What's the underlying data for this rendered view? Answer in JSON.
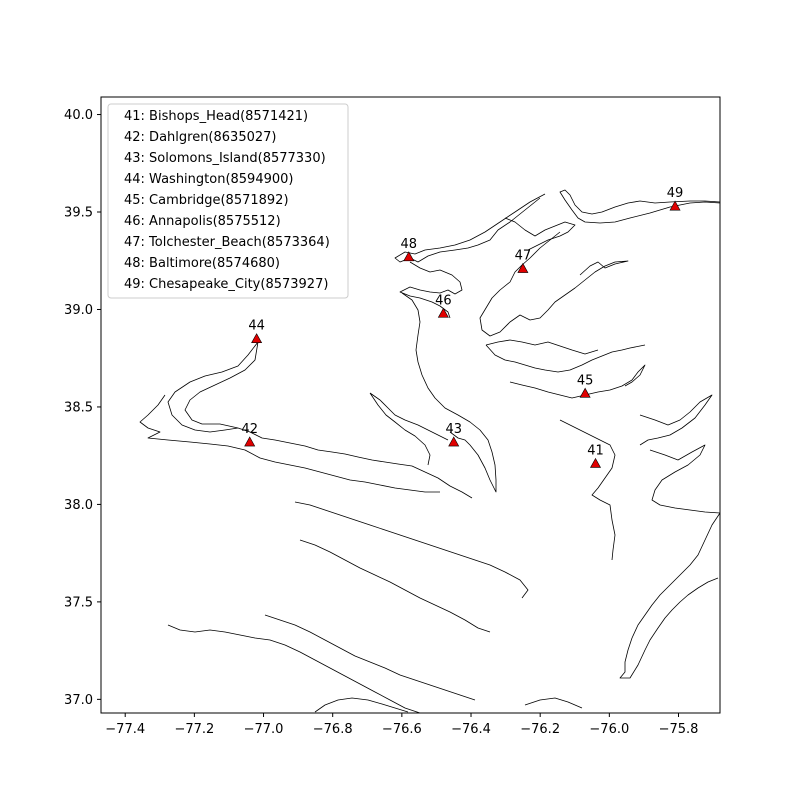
{
  "chart_data": {
    "type": "scatter",
    "title": "",
    "xlabel": "",
    "ylabel": "",
    "xlim": [
      -77.47,
      -75.68
    ],
    "ylim": [
      36.93,
      40.09
    ],
    "x_ticks": [
      -77.4,
      -77.2,
      -77.0,
      -76.8,
      -76.6,
      -76.4,
      -76.2,
      -76.0,
      -75.8
    ],
    "y_ticks": [
      37.0,
      37.5,
      38.0,
      38.5,
      39.0,
      39.5,
      40.0
    ],
    "x_tick_labels": [
      "−77.4",
      "−77.2",
      "−77.0",
      "−76.8",
      "−76.6",
      "−76.4",
      "−76.2",
      "−76.0",
      "−75.8"
    ],
    "y_tick_labels": [
      "37.0",
      "37.5",
      "38.0",
      "38.5",
      "39.0",
      "39.5",
      "40.0"
    ],
    "grid": false,
    "legend_position": "top-left",
    "marker": "triangle",
    "marker_color": "#e00000",
    "stations": [
      {
        "id": "41",
        "lon": -76.04,
        "lat": 38.21,
        "legend": "41: Bishops_Head(8571421)"
      },
      {
        "id": "42",
        "lon": -77.04,
        "lat": 38.32,
        "legend": "42: Dahlgren(8635027)"
      },
      {
        "id": "43",
        "lon": -76.45,
        "lat": 38.32,
        "legend": "43: Solomons_Island(8577330)"
      },
      {
        "id": "44",
        "lon": -77.02,
        "lat": 38.85,
        "legend": "44: Washington(8594900)"
      },
      {
        "id": "45",
        "lon": -76.07,
        "lat": 38.57,
        "legend": "45: Cambridge(8571892)"
      },
      {
        "id": "46",
        "lon": -76.48,
        "lat": 38.98,
        "legend": "46: Annapolis(8575512)"
      },
      {
        "id": "47",
        "lon": -76.25,
        "lat": 39.21,
        "legend": "47: Tolchester_Beach(8573364)"
      },
      {
        "id": "48",
        "lon": -76.58,
        "lat": 39.27,
        "legend": "48: Baltimore(8574680)"
      },
      {
        "id": "49",
        "lon": -75.81,
        "lat": 39.53,
        "legend": "49: Chesapeake_City(8573927)"
      }
    ]
  }
}
